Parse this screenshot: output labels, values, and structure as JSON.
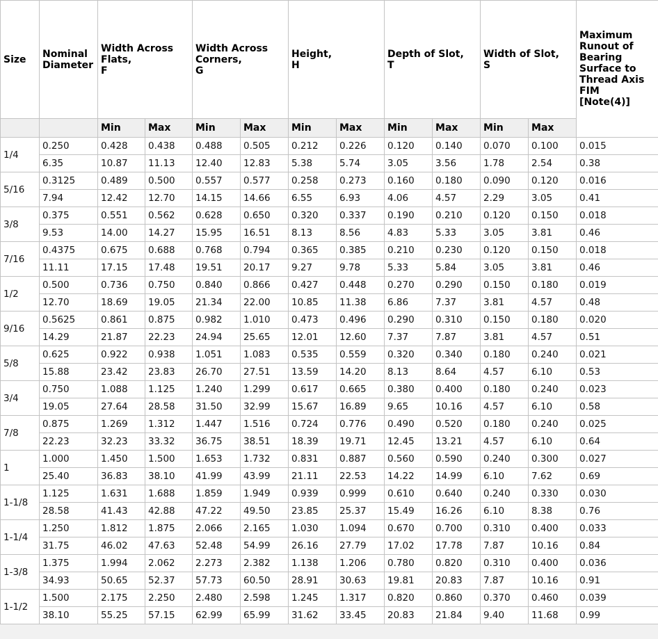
{
  "table": {
    "header": {
      "size": "Size",
      "nominal_diameter": "Nominal Diameter",
      "groups": [
        {
          "label": "Width Across Flats,\nF"
        },
        {
          "label": "Width Across Corners,\nG"
        },
        {
          "label": "Height,\nH"
        },
        {
          "label": "Depth of Slot,\nT"
        },
        {
          "label": "Width of Slot,\nS"
        }
      ],
      "min_label": "Min",
      "max_label": "Max",
      "fim": "Maximum Runout of Bearing Surface to Thread Axis FIM\n[Note(4)]"
    },
    "rows": [
      {
        "size": "1/4",
        "inch": [
          "0.250",
          "0.428",
          "0.438",
          "0.488",
          "0.505",
          "0.212",
          "0.226",
          "0.120",
          "0.140",
          "0.070",
          "0.100",
          "0.015"
        ],
        "metric": [
          "6.35",
          "10.87",
          "11.13",
          "12.40",
          "12.83",
          "5.38",
          "5.74",
          "3.05",
          "3.56",
          "1.78",
          "2.54",
          "0.38"
        ]
      },
      {
        "size": "5/16",
        "inch": [
          "0.3125",
          "0.489",
          "0.500",
          "0.557",
          "0.577",
          "0.258",
          "0.273",
          "0.160",
          "0.180",
          "0.090",
          "0.120",
          "0.016"
        ],
        "metric": [
          "7.94",
          "12.42",
          "12.70",
          "14.15",
          "14.66",
          "6.55",
          "6.93",
          "4.06",
          "4.57",
          "2.29",
          "3.05",
          "0.41"
        ]
      },
      {
        "size": "3/8",
        "inch": [
          "0.375",
          "0.551",
          "0.562",
          "0.628",
          "0.650",
          "0.320",
          "0.337",
          "0.190",
          "0.210",
          "0.120",
          "0.150",
          "0.018"
        ],
        "metric": [
          "9.53",
          "14.00",
          "14.27",
          "15.95",
          "16.51",
          "8.13",
          "8.56",
          "4.83",
          "5.33",
          "3.05",
          "3.81",
          "0.46"
        ]
      },
      {
        "size": "7/16",
        "inch": [
          "0.4375",
          "0.675",
          "0.688",
          "0.768",
          "0.794",
          "0.365",
          "0.385",
          "0.210",
          "0.230",
          "0.120",
          "0.150",
          "0.018"
        ],
        "metric": [
          "11.11",
          "17.15",
          "17.48",
          "19.51",
          "20.17",
          "9.27",
          "9.78",
          "5.33",
          "5.84",
          "3.05",
          "3.81",
          "0.46"
        ]
      },
      {
        "size": "1/2",
        "inch": [
          "0.500",
          "0.736",
          "0.750",
          "0.840",
          "0.866",
          "0.427",
          "0.448",
          "0.270",
          "0.290",
          "0.150",
          "0.180",
          "0.019"
        ],
        "metric": [
          "12.70",
          "18.69",
          "19.05",
          "21.34",
          "22.00",
          "10.85",
          "11.38",
          "6.86",
          "7.37",
          "3.81",
          "4.57",
          "0.48"
        ]
      },
      {
        "size": "9/16",
        "inch": [
          "0.5625",
          "0.861",
          "0.875",
          "0.982",
          "1.010",
          "0.473",
          "0.496",
          "0.290",
          "0.310",
          "0.150",
          "0.180",
          "0.020"
        ],
        "metric": [
          "14.29",
          "21.87",
          "22.23",
          "24.94",
          "25.65",
          "12.01",
          "12.60",
          "7.37",
          "7.87",
          "3.81",
          "4.57",
          "0.51"
        ]
      },
      {
        "size": "5/8",
        "inch": [
          "0.625",
          "0.922",
          "0.938",
          "1.051",
          "1.083",
          "0.535",
          "0.559",
          "0.320",
          "0.340",
          "0.180",
          "0.240",
          "0.021"
        ],
        "metric": [
          "15.88",
          "23.42",
          "23.83",
          "26.70",
          "27.51",
          "13.59",
          "14.20",
          "8.13",
          "8.64",
          "4.57",
          "6.10",
          "0.53"
        ]
      },
      {
        "size": "3/4",
        "inch": [
          "0.750",
          "1.088",
          "1.125",
          "1.240",
          "1.299",
          "0.617",
          "0.665",
          "0.380",
          "0.400",
          "0.180",
          "0.240",
          "0.023"
        ],
        "metric": [
          "19.05",
          "27.64",
          "28.58",
          "31.50",
          "32.99",
          "15.67",
          "16.89",
          "9.65",
          "10.16",
          "4.57",
          "6.10",
          "0.58"
        ]
      },
      {
        "size": "7/8",
        "inch": [
          "0.875",
          "1.269",
          "1.312",
          "1.447",
          "1.516",
          "0.724",
          "0.776",
          "0.490",
          "0.520",
          "0.180",
          "0.240",
          "0.025"
        ],
        "metric": [
          "22.23",
          "32.23",
          "33.32",
          "36.75",
          "38.51",
          "18.39",
          "19.71",
          "12.45",
          "13.21",
          "4.57",
          "6.10",
          "0.64"
        ]
      },
      {
        "size": "1",
        "inch": [
          "1.000",
          "1.450",
          "1.500",
          "1.653",
          "1.732",
          "0.831",
          "0.887",
          "0.560",
          "0.590",
          "0.240",
          "0.300",
          "0.027"
        ],
        "metric": [
          "25.40",
          "36.83",
          "38.10",
          "41.99",
          "43.99",
          "21.11",
          "22.53",
          "14.22",
          "14.99",
          "6.10",
          "7.62",
          "0.69"
        ]
      },
      {
        "size": "1-1/8",
        "inch": [
          "1.125",
          "1.631",
          "1.688",
          "1.859",
          "1.949",
          "0.939",
          "0.999",
          "0.610",
          "0.640",
          "0.240",
          "0.330",
          "0.030"
        ],
        "metric": [
          "28.58",
          "41.43",
          "42.88",
          "47.22",
          "49.50",
          "23.85",
          "25.37",
          "15.49",
          "16.26",
          "6.10",
          "8.38",
          "0.76"
        ]
      },
      {
        "size": "1-1/4",
        "inch": [
          "1.250",
          "1.812",
          "1.875",
          "2.066",
          "2.165",
          "1.030",
          "1.094",
          "0.670",
          "0.700",
          "0.310",
          "0.400",
          "0.033"
        ],
        "metric": [
          "31.75",
          "46.02",
          "47.63",
          "52.48",
          "54.99",
          "26.16",
          "27.79",
          "17.02",
          "17.78",
          "7.87",
          "10.16",
          "0.84"
        ]
      },
      {
        "size": "1-3/8",
        "inch": [
          "1.375",
          "1.994",
          "2.062",
          "2.273",
          "2.382",
          "1.138",
          "1.206",
          "0.780",
          "0.820",
          "0.310",
          "0.400",
          "0.036"
        ],
        "metric": [
          "34.93",
          "50.65",
          "52.37",
          "57.73",
          "60.50",
          "28.91",
          "30.63",
          "19.81",
          "20.83",
          "7.87",
          "10.16",
          "0.91"
        ]
      },
      {
        "size": "1-1/2",
        "inch": [
          "1.500",
          "2.175",
          "2.250",
          "2.480",
          "2.598",
          "1.245",
          "1.317",
          "0.820",
          "0.860",
          "0.370",
          "0.460",
          "0.039"
        ],
        "metric": [
          "38.10",
          "55.25",
          "57.15",
          "62.99",
          "65.99",
          "31.62",
          "33.45",
          "20.83",
          "21.84",
          "9.40",
          "11.68",
          "0.99"
        ]
      }
    ]
  },
  "colors": {
    "border": "#c3c3c3",
    "subheader_background": "#efefef",
    "page_background": "#f1f1f1",
    "text": "#141414"
  }
}
